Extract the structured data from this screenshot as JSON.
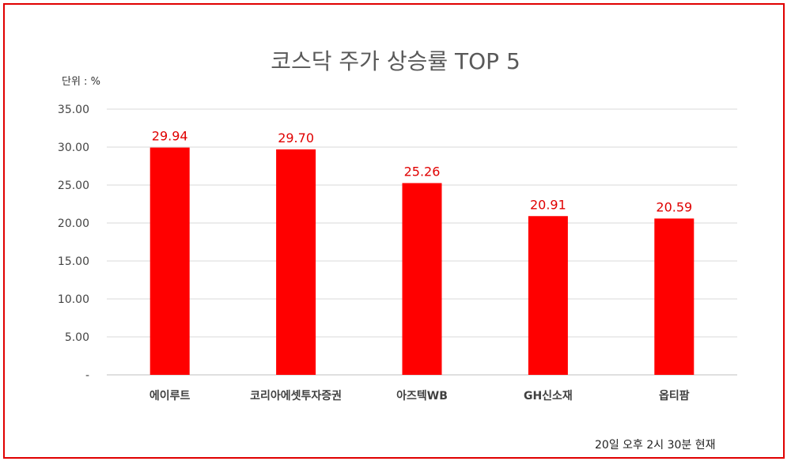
{
  "chart_data": {
    "type": "bar",
    "title": "코스닥 주가 상승률 TOP 5",
    "unit_label": "단위 : %",
    "footnote": "20일 오후 2시 30분 현재",
    "categories": [
      "에이루트",
      "코리아에셋투자증권",
      "아즈텍WB",
      "GH신소재",
      "옵티팜"
    ],
    "values": [
      29.94,
      29.7,
      25.26,
      20.91,
      20.59
    ],
    "data_labels": [
      "29.94",
      "29.70",
      "25.26",
      "20.91",
      "20.59"
    ],
    "ylim": [
      0,
      35
    ],
    "yticks": [
      0,
      5,
      10,
      15,
      20,
      25,
      30,
      35
    ],
    "ytick_labels": [
      "-",
      "5.00",
      "10.00",
      "15.00",
      "20.00",
      "25.00",
      "30.00",
      "35.00"
    ],
    "grid": true,
    "bar_color": "#ff0000",
    "label_color": "#e00000"
  }
}
